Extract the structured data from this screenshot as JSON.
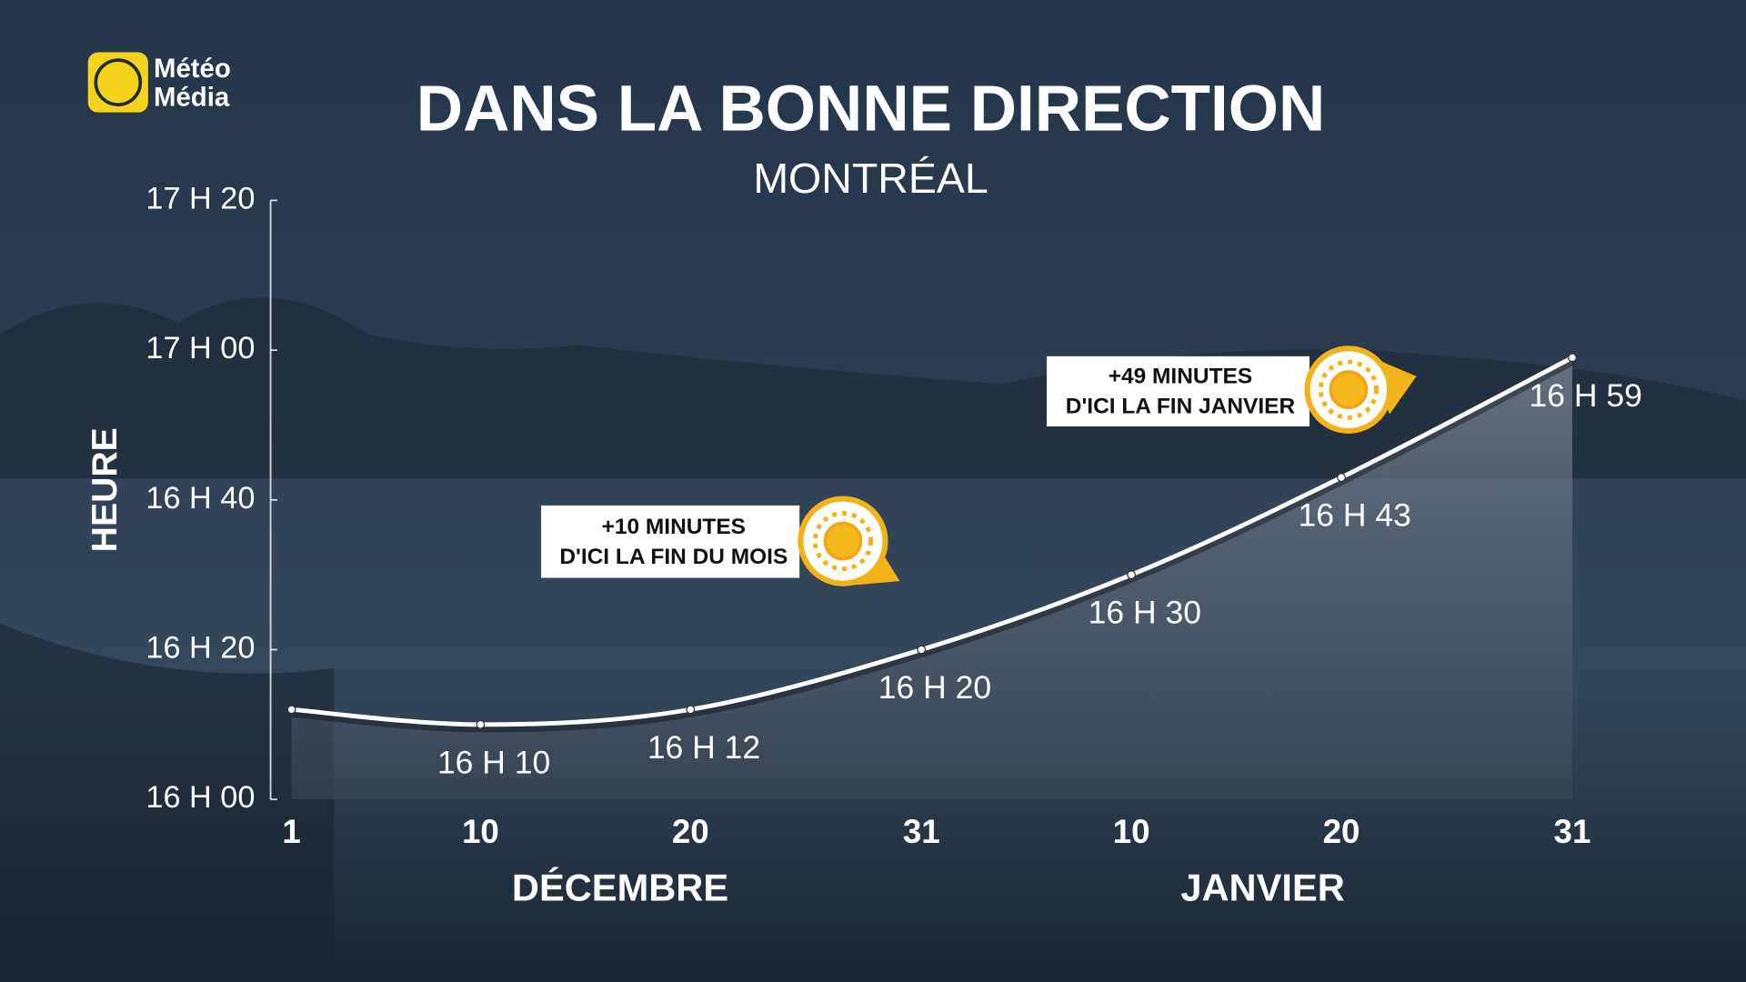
{
  "logo": {
    "lines": [
      "Météo",
      "Média"
    ]
  },
  "chart_data": {
    "type": "line",
    "title": "DANS LA BONNE DIRECTION",
    "subtitle": "MONTRÉAL",
    "y_label": "HEURE",
    "x": [
      1,
      10,
      20,
      31,
      41,
      51,
      62
    ],
    "values": [
      972,
      970,
      972,
      980,
      990,
      1003,
      1019
    ],
    "value_labels": [
      null,
      "16 H 10",
      "16 H 12",
      "16 H 20",
      "16 H 30",
      "16 H 43",
      "16 H 59"
    ],
    "color": "#ffffff",
    "xlim": [
      0,
      62
    ],
    "xticks": [
      1,
      10,
      20,
      31,
      {
        "value": 41,
        "label": "10"
      },
      {
        "value": 51,
        "label": "20"
      },
      {
        "value": 62,
        "label": "31"
      }
    ],
    "x_groups": [
      "DÉCEMBRE",
      "JANVIER"
    ],
    "ylim": [
      960,
      1040
    ],
    "yticks": [
      {
        "value": 960,
        "label": "16 H 00"
      },
      {
        "value": 980,
        "label": "16 H 20"
      },
      {
        "value": 1000,
        "label": "16 H 40"
      },
      {
        "value": 1020,
        "label": "17 H 00"
      },
      {
        "value": 1040,
        "label": "17 H 20"
      }
    ],
    "annotations": [
      {
        "lines": [
          "+10 MINUTES",
          "D'ICI LA FIN DU MOIS"
        ]
      },
      {
        "lines": [
          "+49 MINUTES",
          "D'ICI LA FIN JANVIER"
        ]
      }
    ]
  }
}
